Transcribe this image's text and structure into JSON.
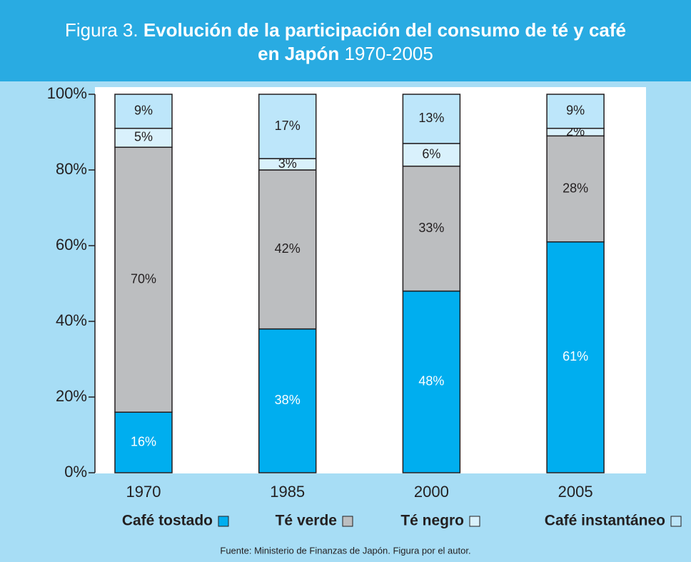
{
  "chart_data": {
    "type": "stacked_bar",
    "title": {
      "prefix": "Figura 3.",
      "bold_line1": "Evolución de la participación del consumo de té y café",
      "bold_line2": "en Japón",
      "suffix": "1970-2005"
    },
    "categories": [
      "1970",
      "1985",
      "2000",
      "2005"
    ],
    "series": [
      {
        "name": "Café tostado",
        "color": "#00aeef",
        "label_color": "#ffffff",
        "values": [
          16,
          38,
          48,
          61
        ],
        "value_labels": [
          "16%",
          "38%",
          "48%",
          "61%"
        ]
      },
      {
        "name": "Té verde",
        "color": "#bcbec0",
        "label_color": "#231f20",
        "values": [
          70,
          42,
          33,
          28
        ],
        "value_labels": [
          "70%",
          "42%",
          "33%",
          "28%"
        ]
      },
      {
        "name": "Té negro",
        "color": "#d9f1fc",
        "label_color": "#231f20",
        "values": [
          5,
          3,
          6,
          2
        ],
        "value_labels": [
          "5%",
          "3%",
          "6%",
          "2%"
        ]
      },
      {
        "name": "Café instantáneo",
        "color": "#bde6fa",
        "label_color": "#231f20",
        "values": [
          9,
          17,
          13,
          9
        ],
        "value_labels": [
          "9%",
          "17%",
          "13%",
          "9%"
        ]
      }
    ],
    "ylim": [
      0,
      100
    ],
    "yticks": [
      {
        "value": 0,
        "label": "0%"
      },
      {
        "value": 20,
        "label": "20%"
      },
      {
        "value": 40,
        "label": "40%"
      },
      {
        "value": 60,
        "label": "60%"
      },
      {
        "value": 80,
        "label": "80%"
      },
      {
        "value": 100,
        "label": "100%"
      }
    ],
    "source": "Fuente: Ministerio de Finanzas de Japón. Figura por el autor."
  }
}
